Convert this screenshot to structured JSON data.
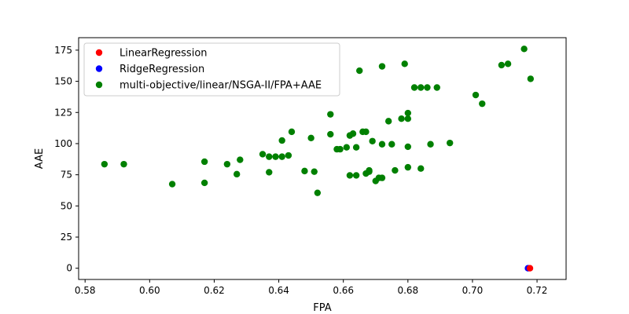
{
  "chart_data": {
    "type": "scatter",
    "xlabel": "FPA",
    "ylabel": "AAE",
    "xlim": [
      0.578,
      0.729
    ],
    "ylim": [
      -9,
      185
    ],
    "xticks": [
      "0.58",
      "0.60",
      "0.62",
      "0.64",
      "0.66",
      "0.68",
      "0.70",
      "0.72"
    ],
    "yticks": [
      "0",
      "25",
      "50",
      "75",
      "100",
      "125",
      "150",
      "175"
    ],
    "grid": false,
    "legend_position": "top-left",
    "series": [
      {
        "name": "LinearRegression",
        "color": "#ff0000",
        "points": [
          [
            0.7178,
            0.0
          ]
        ]
      },
      {
        "name": "RidgeRegression",
        "color": "#0000ff",
        "points": [
          [
            0.7172,
            0.0
          ]
        ]
      },
      {
        "name": "multi-objective/linear/NSGA-II/FPA+AAE",
        "color": "#008000",
        "points": [
          [
            0.586,
            83.5
          ],
          [
            0.592,
            83.5
          ],
          [
            0.607,
            67.5
          ],
          [
            0.617,
            68.5
          ],
          [
            0.617,
            85.5
          ],
          [
            0.624,
            83.5
          ],
          [
            0.627,
            75.5
          ],
          [
            0.628,
            87.0
          ],
          [
            0.635,
            91.5
          ],
          [
            0.637,
            89.5
          ],
          [
            0.637,
            77.0
          ],
          [
            0.639,
            89.5
          ],
          [
            0.641,
            89.5
          ],
          [
            0.641,
            102.5
          ],
          [
            0.643,
            90.5
          ],
          [
            0.644,
            109.5
          ],
          [
            0.648,
            78.0
          ],
          [
            0.65,
            104.5
          ],
          [
            0.651,
            77.5
          ],
          [
            0.652,
            60.5
          ],
          [
            0.656,
            123.5
          ],
          [
            0.656,
            107.5
          ],
          [
            0.658,
            95.5
          ],
          [
            0.659,
            95.5
          ],
          [
            0.661,
            97.0
          ],
          [
            0.662,
            106.5
          ],
          [
            0.662,
            74.5
          ],
          [
            0.663,
            108.0
          ],
          [
            0.664,
            97.0
          ],
          [
            0.664,
            74.5
          ],
          [
            0.665,
            158.5
          ],
          [
            0.666,
            109.5
          ],
          [
            0.667,
            109.5
          ],
          [
            0.667,
            76.0
          ],
          [
            0.668,
            77.5
          ],
          [
            0.668,
            78.5
          ],
          [
            0.669,
            102.0
          ],
          [
            0.67,
            70.0
          ],
          [
            0.671,
            72.5
          ],
          [
            0.672,
            72.5
          ],
          [
            0.672,
            162.0
          ],
          [
            0.672,
            99.5
          ],
          [
            0.674,
            118.0
          ],
          [
            0.675,
            99.5
          ],
          [
            0.676,
            78.5
          ],
          [
            0.678,
            120.0
          ],
          [
            0.679,
            164.0
          ],
          [
            0.68,
            120.0
          ],
          [
            0.68,
            124.5
          ],
          [
            0.68,
            97.5
          ],
          [
            0.68,
            81.0
          ],
          [
            0.682,
            145.0
          ],
          [
            0.684,
            145.0
          ],
          [
            0.684,
            80.0
          ],
          [
            0.686,
            145.0
          ],
          [
            0.687,
            99.5
          ],
          [
            0.689,
            145.0
          ],
          [
            0.693,
            100.5
          ],
          [
            0.701,
            139.0
          ],
          [
            0.703,
            132.0
          ],
          [
            0.709,
            163.0
          ],
          [
            0.711,
            164.0
          ],
          [
            0.716,
            176.0
          ],
          [
            0.718,
            152.0
          ]
        ]
      }
    ]
  }
}
